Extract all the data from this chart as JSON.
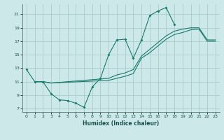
{
  "xlabel": "Humidex (Indice chaleur)",
  "background_color": "#cce8e8",
  "grid_color": "#aacccc",
  "line_color": "#1a7a6e",
  "xlim": [
    -0.5,
    23.5
  ],
  "ylim": [
    6.5,
    22.5
  ],
  "xticks": [
    0,
    1,
    2,
    3,
    4,
    5,
    6,
    7,
    8,
    9,
    10,
    11,
    12,
    13,
    14,
    15,
    16,
    17,
    18,
    19,
    20,
    21,
    22,
    23
  ],
  "yticks": [
    7,
    9,
    11,
    13,
    15,
    17,
    19,
    21
  ],
  "line1_x": [
    0,
    1,
    2,
    3,
    4,
    5,
    6,
    7,
    8,
    9,
    10,
    11,
    12,
    13,
    14,
    15,
    16,
    17,
    18
  ],
  "line1_y": [
    12.8,
    11.0,
    11.0,
    9.2,
    8.3,
    8.2,
    7.8,
    7.2,
    10.2,
    11.5,
    15.0,
    17.2,
    17.3,
    14.5,
    17.2,
    20.8,
    21.5,
    22.0,
    19.5
  ],
  "line2_x": [
    1,
    2,
    3,
    10,
    11,
    12,
    13,
    14,
    15,
    16,
    17,
    18,
    19,
    20,
    21,
    22,
    23
  ],
  "line2_y": [
    11.0,
    11.0,
    10.8,
    11.5,
    12.0,
    12.3,
    12.8,
    14.8,
    15.8,
    16.8,
    17.8,
    18.5,
    18.8,
    19.0,
    19.0,
    17.2,
    17.2
  ],
  "line3_x": [
    1,
    2,
    3,
    10,
    11,
    12,
    13,
    14,
    15,
    16,
    17,
    18,
    19,
    20,
    21,
    22,
    23
  ],
  "line3_y": [
    11.0,
    11.0,
    10.8,
    11.2,
    11.5,
    11.8,
    12.2,
    14.5,
    15.3,
    16.3,
    17.3,
    18.0,
    18.3,
    18.7,
    18.8,
    17.0,
    17.0
  ]
}
